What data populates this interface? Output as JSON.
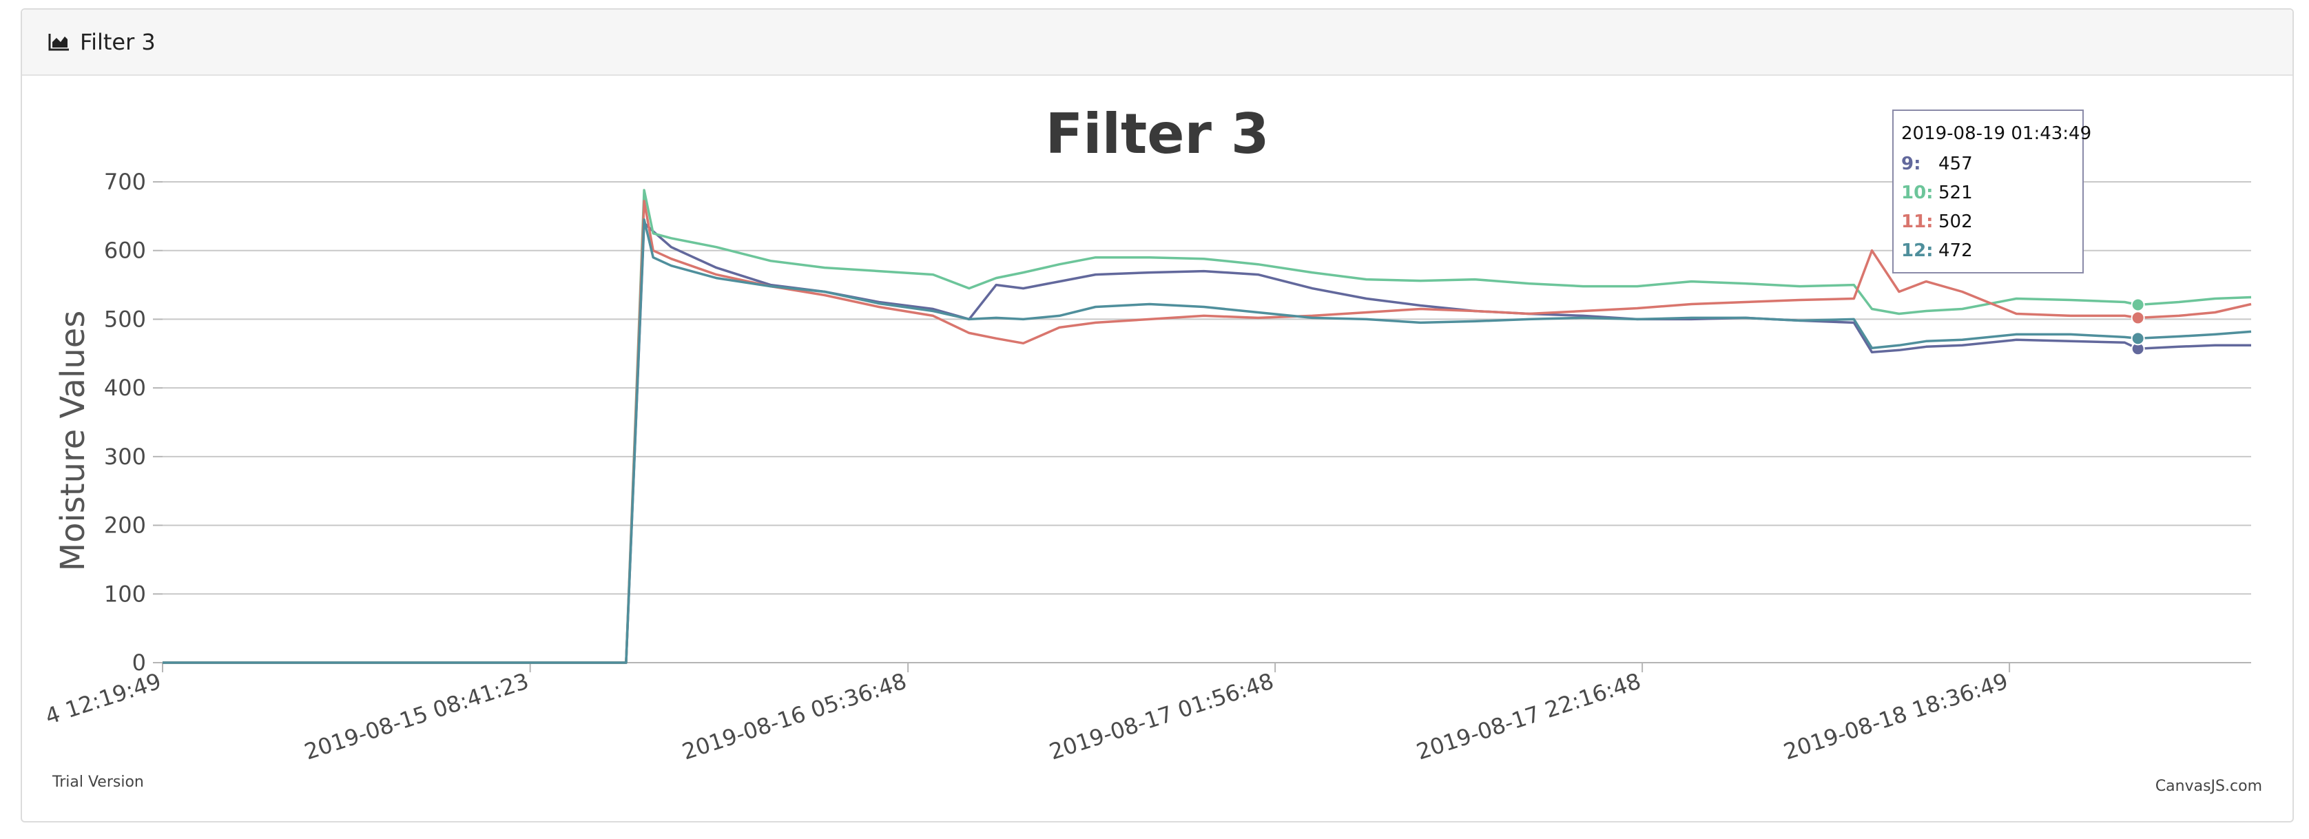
{
  "panel": {
    "header_title": "Filter 3",
    "header_icon": "area-chart-icon"
  },
  "watermark": {
    "trial": "Trial Version",
    "brand": "CanvasJS.com"
  },
  "colors": {
    "s9": "#62689c",
    "s10": "#6cc59a",
    "s11": "#d9756d",
    "s12": "#4f8f9c",
    "grid": "#c8c8c8",
    "axis": "#b5b5b5"
  },
  "chart_data": {
    "type": "line",
    "title": "Filter 3",
    "ylabel": "Moisture Values",
    "xlabel": "",
    "ylim": [
      0,
      700
    ],
    "yticks": [
      0,
      100,
      200,
      300,
      400,
      500,
      600,
      700
    ],
    "xlim": [
      "2019-08-14 12:19:49",
      "2019-08-19 08:00:00"
    ],
    "xticks": [
      {
        "t": "2019-08-14 12:19:49",
        "label": "4 12:19:49"
      },
      {
        "t": "2019-08-15 08:41:23",
        "label": "2019-08-15 08:41:23"
      },
      {
        "t": "2019-08-16 05:36:48",
        "label": "2019-08-16 05:36:48"
      },
      {
        "t": "2019-08-17 01:56:48",
        "label": "2019-08-17 01:56:48"
      },
      {
        "t": "2019-08-17 22:16:48",
        "label": "2019-08-17 22:16:48"
      },
      {
        "t": "2019-08-18 18:36:49",
        "label": "2019-08-18 18:36:49"
      }
    ],
    "grid": true,
    "legend": "none",
    "tooltip": {
      "time": "2019-08-19 01:43:49",
      "rows": [
        {
          "name": "9",
          "value": "457"
        },
        {
          "name": "10",
          "value": "521"
        },
        {
          "name": "11",
          "value": "502"
        },
        {
          "name": "12",
          "value": "472"
        }
      ]
    },
    "x": [
      "2019-08-14 12:19:49",
      "2019-08-15 14:00:00",
      "2019-08-15 15:00:00",
      "2019-08-15 15:30:00",
      "2019-08-15 16:30:00",
      "2019-08-15 19:00:00",
      "2019-08-15 22:00:00",
      "2019-08-16 01:00:00",
      "2019-08-16 04:00:00",
      "2019-08-16 07:00:00",
      "2019-08-16 09:00:00",
      "2019-08-16 10:30:00",
      "2019-08-16 12:00:00",
      "2019-08-16 14:00:00",
      "2019-08-16 16:00:00",
      "2019-08-16 19:00:00",
      "2019-08-16 22:00:00",
      "2019-08-17 01:00:00",
      "2019-08-17 04:00:00",
      "2019-08-17 07:00:00",
      "2019-08-17 10:00:00",
      "2019-08-17 13:00:00",
      "2019-08-17 16:00:00",
      "2019-08-17 19:00:00",
      "2019-08-17 22:00:00",
      "2019-08-18 01:00:00",
      "2019-08-18 04:00:00",
      "2019-08-18 07:00:00",
      "2019-08-18 10:00:00",
      "2019-08-18 11:00:00",
      "2019-08-18 12:30:00",
      "2019-08-18 14:00:00",
      "2019-08-18 16:00:00",
      "2019-08-18 19:00:00",
      "2019-08-18 22:00:00",
      "2019-08-19 01:00:00",
      "2019-08-19 01:43:49",
      "2019-08-19 04:00:00",
      "2019-08-19 06:00:00",
      "2019-08-19 08:00:00"
    ],
    "series": [
      {
        "name": "9",
        "color": "#62689c",
        "values": [
          0,
          0,
          640,
          628,
          605,
          575,
          550,
          540,
          525,
          515,
          500,
          550,
          545,
          555,
          565,
          568,
          570,
          565,
          545,
          530,
          520,
          512,
          508,
          505,
          500,
          500,
          502,
          498,
          495,
          452,
          455,
          460,
          462,
          470,
          468,
          466,
          457,
          460,
          462,
          462
        ]
      },
      {
        "name": "10",
        "color": "#6cc59a",
        "values": [
          0,
          0,
          688,
          625,
          618,
          605,
          585,
          575,
          570,
          565,
          545,
          560,
          568,
          580,
          590,
          590,
          588,
          580,
          568,
          558,
          556,
          558,
          552,
          548,
          548,
          555,
          552,
          548,
          550,
          515,
          508,
          512,
          515,
          530,
          528,
          525,
          521,
          525,
          530,
          532
        ]
      },
      {
        "name": "11",
        "color": "#d9756d",
        "values": [
          0,
          0,
          672,
          600,
          588,
          565,
          548,
          535,
          518,
          505,
          480,
          472,
          465,
          488,
          495,
          500,
          505,
          502,
          505,
          510,
          515,
          512,
          508,
          512,
          516,
          522,
          525,
          528,
          530,
          600,
          540,
          555,
          540,
          508,
          505,
          505,
          502,
          505,
          510,
          522
        ]
      },
      {
        "name": "12",
        "color": "#4f8f9c",
        "values": [
          0,
          0,
          645,
          590,
          578,
          560,
          548,
          540,
          523,
          512,
          500,
          502,
          500,
          505,
          518,
          522,
          518,
          510,
          502,
          500,
          495,
          497,
          500,
          502,
          500,
          502,
          502,
          498,
          500,
          458,
          462,
          468,
          470,
          478,
          478,
          474,
          472,
          475,
          478,
          482
        ]
      }
    ]
  }
}
